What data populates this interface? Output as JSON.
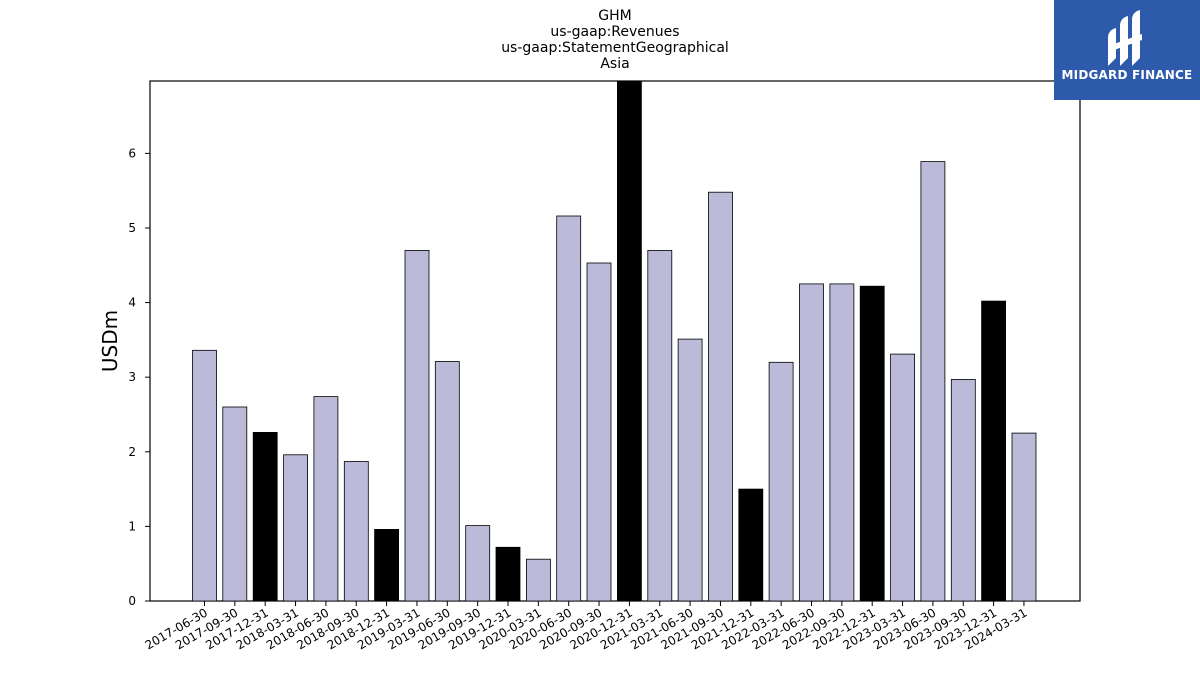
{
  "brand": {
    "name": "MIDGARD FINANCE",
    "color": "#2e5aac"
  },
  "chart_data": {
    "type": "bar",
    "title_lines": [
      "GHM",
      "us-gaap:Revenues",
      "us-gaap:StatementGeographical",
      "Asia"
    ],
    "xlabel": "",
    "ylabel": "USDm",
    "ylim": [
      0,
      6.97
    ],
    "yticks": [
      0,
      1,
      2,
      3,
      4,
      5,
      6
    ],
    "grid": false,
    "categories": [
      "2017-06-30",
      "2017-09-30",
      "2017-12-31",
      "2018-03-31",
      "2018-06-30",
      "2018-09-30",
      "2018-12-31",
      "2019-03-31",
      "2019-06-30",
      "2019-09-30",
      "2019-12-31",
      "2020-03-31",
      "2020-06-30",
      "2020-09-30",
      "2020-12-31",
      "2021-03-31",
      "2021-06-30",
      "2021-09-30",
      "2021-12-31",
      "2022-03-31",
      "2022-06-30",
      "2022-09-30",
      "2022-12-31",
      "2023-03-31",
      "2023-06-30",
      "2023-09-30",
      "2023-12-31",
      "2024-03-31"
    ],
    "values": [
      3.36,
      2.6,
      2.26,
      1.96,
      2.74,
      1.87,
      0.96,
      4.7,
      3.21,
      1.01,
      0.72,
      0.56,
      5.16,
      4.53,
      6.97,
      4.7,
      3.51,
      5.48,
      1.5,
      3.2,
      4.25,
      4.25,
      4.22,
      3.31,
      5.89,
      2.97,
      4.02,
      2.25
    ],
    "colors": {
      "quarter": "#bcbad9",
      "year_end": "#000000",
      "edge": "#000000"
    }
  }
}
